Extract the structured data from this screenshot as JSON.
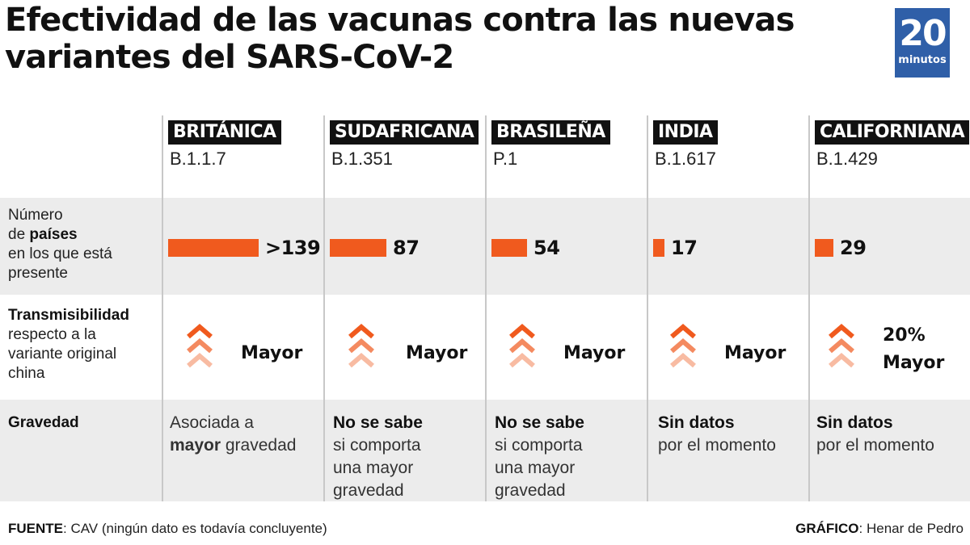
{
  "title": "Efectividad de las vacunas contra las nuevas variantes del SARS-CoV-2",
  "logo": {
    "number": "20",
    "word": "minutos",
    "color": "#2f5fa8"
  },
  "colors": {
    "accent": "#f05a1e",
    "band": "#ececec",
    "tag_bg": "#111111"
  },
  "row_labels": {
    "countries": {
      "l1": "Número",
      "l2_pre": "de ",
      "l2_bold": "países",
      "l3": "en los que está",
      "l4": "presente"
    },
    "trans": {
      "title": "Transmisibilidad",
      "l2": "respecto a la",
      "l3": "variante original",
      "l4": "china"
    },
    "grav": {
      "title": "Gravedad"
    }
  },
  "variants": [
    {
      "name": "BRITÁNICA",
      "code": "B.1.1.7",
      "countries_label": ">139",
      "countries_value": 139,
      "trans_l1": "",
      "trans_l2": "Mayor",
      "grav_pre": "Asociada a",
      "grav_bold_lead": "",
      "grav_bold_inline": "mayor",
      "grav_post_inline": " gravedad",
      "grav_rest": ""
    },
    {
      "name": "SUDAFRICANA",
      "code": "B.1.351",
      "countries_label": "87",
      "countries_value": 87,
      "trans_l1": "",
      "trans_l2": "Mayor",
      "grav_pre": "",
      "grav_bold_lead": "No se sabe",
      "grav_bold_inline": "",
      "grav_post_inline": "si comporta",
      "grav_rest": "una mayor gravedad"
    },
    {
      "name": "BRASILEÑA",
      "code": "P.1",
      "countries_label": "54",
      "countries_value": 54,
      "trans_l1": "",
      "trans_l2": "Mayor",
      "grav_pre": "",
      "grav_bold_lead": "No se sabe",
      "grav_bold_inline": "",
      "grav_post_inline": "si comporta",
      "grav_rest": "una mayor gravedad"
    },
    {
      "name": "INDIA",
      "code": "B.1.617",
      "countries_label": "17",
      "countries_value": 17,
      "trans_l1": "",
      "trans_l2": "Mayor",
      "grav_pre": "",
      "grav_bold_lead": "Sin datos",
      "grav_bold_inline": "",
      "grav_post_inline": "por el momento",
      "grav_rest": ""
    },
    {
      "name": "CALIFORNIANA",
      "code": "B.1.429",
      "countries_label": "29",
      "countries_value": 29,
      "trans_l1": "20%",
      "trans_l2": "Mayor",
      "grav_pre": "",
      "grav_bold_lead": "Sin datos",
      "grav_bold_inline": "",
      "grav_post_inline": "por el momento",
      "grav_rest": ""
    }
  ],
  "footer": {
    "source_label": "FUENTE",
    "source_text": ": CAV (ningún dato es todavía concluyente)",
    "graphic_label": "GRÁFICO",
    "graphic_text": ": Henar de Pedro"
  }
}
